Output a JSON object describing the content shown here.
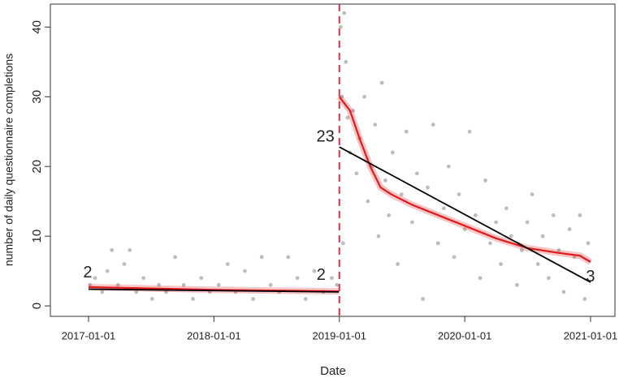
{
  "chart_data": {
    "type": "scatter",
    "x_label": "Date",
    "y_label": "number of daily questionnaire completions",
    "xlim": [
      "2016-09-12",
      "2021-03-13"
    ],
    "ylim": [
      -1.5,
      43.3
    ],
    "xticks": [
      "2017-01-01",
      "2018-01-01",
      "2019-01-01",
      "2020-01-01",
      "2021-01-01"
    ],
    "yticks": [
      0,
      10,
      20,
      30,
      40
    ],
    "vline": {
      "x": "2019-01-01",
      "color": "#d6334d"
    },
    "points": {
      "color": "#bdbdbd",
      "x": [
        "2017-01-05",
        "2017-01-20",
        "2017-02-10",
        "2017-02-25",
        "2017-03-10",
        "2017-03-28",
        "2017-04-15",
        "2017-05-01",
        "2017-05-20",
        "2017-06-10",
        "2017-07-05",
        "2017-07-25",
        "2017-08-15",
        "2017-09-10",
        "2017-10-05",
        "2017-11-01",
        "2017-11-25",
        "2017-12-20",
        "2018-01-15",
        "2018-02-10",
        "2018-03-05",
        "2018-04-01",
        "2018-04-25",
        "2018-05-20",
        "2018-06-15",
        "2018-07-10",
        "2018-08-05",
        "2018-09-01",
        "2018-09-25",
        "2018-10-20",
        "2018-11-15",
        "2018-12-10",
        "2018-12-25",
        "2019-01-05",
        "2019-01-08",
        "2019-01-12",
        "2019-01-15",
        "2019-01-20",
        "2019-01-25",
        "2019-02-01",
        "2019-02-10",
        "2019-02-20",
        "2019-03-01",
        "2019-03-15",
        "2019-03-25",
        "2019-04-05",
        "2019-04-15",
        "2019-04-25",
        "2019-05-05",
        "2019-05-15",
        "2019-05-25",
        "2019-06-05",
        "2019-06-20",
        "2019-07-01",
        "2019-07-15",
        "2019-08-01",
        "2019-08-15",
        "2019-09-01",
        "2019-09-15",
        "2019-10-01",
        "2019-10-15",
        "2019-11-01",
        "2019-11-15",
        "2019-12-01",
        "2019-12-15",
        "2020-01-01",
        "2020-01-15",
        "2020-02-01",
        "2020-02-15",
        "2020-03-01",
        "2020-03-15",
        "2020-04-01",
        "2020-04-15",
        "2020-05-01",
        "2020-05-15",
        "2020-06-01",
        "2020-06-15",
        "2020-07-01",
        "2020-07-15",
        "2020-08-01",
        "2020-08-15",
        "2020-09-01",
        "2020-09-15",
        "2020-10-01",
        "2020-10-15",
        "2020-11-01",
        "2020-11-15",
        "2020-12-01",
        "2020-12-15",
        "2020-12-25"
      ],
      "values": [
        3,
        4,
        2,
        5,
        8,
        3,
        6,
        8,
        2,
        4,
        1,
        3,
        2,
        7,
        3,
        1,
        4,
        2,
        3,
        6,
        2,
        5,
        1,
        7,
        3,
        2,
        7,
        4,
        1,
        5,
        2,
        4,
        3,
        40,
        30,
        9,
        42,
        35,
        27,
        22,
        28,
        19,
        24,
        30,
        15,
        20,
        26,
        10,
        32,
        18,
        13,
        22,
        6,
        16,
        25,
        12,
        19,
        1,
        17,
        26,
        9,
        14,
        20,
        7,
        16,
        11,
        25,
        13,
        4,
        18,
        9,
        12,
        6,
        14,
        10,
        3,
        8,
        12,
        16,
        6,
        10,
        4,
        13,
        8,
        2,
        11,
        7,
        13,
        1,
        9
      ]
    },
    "lines": [
      {
        "color": "#e31a1c",
        "x": [
          "2017-01-01",
          "2017-07-01",
          "2018-01-01",
          "2018-07-01",
          "2018-12-31"
        ],
        "values": [
          2.7,
          2.5,
          2.3,
          2.2,
          2.1
        ]
      },
      {
        "color": "#e31a1c",
        "x": [
          "2019-01-01",
          "2019-02-01",
          "2019-03-01",
          "2019-04-01",
          "2019-05-01",
          "2019-06-01",
          "2019-08-01",
          "2019-10-01",
          "2020-01-01",
          "2020-04-01",
          "2020-07-01",
          "2020-10-01",
          "2020-12-01",
          "2021-01-01"
        ],
        "values": [
          30,
          28,
          24,
          20,
          17,
          16,
          14.5,
          13.3,
          11.5,
          9.7,
          8.3,
          7.6,
          7.2,
          6.3
        ]
      },
      {
        "color": "#000000",
        "x": [
          "2017-01-01",
          "2018-12-31"
        ],
        "values": [
          2.4,
          2.0
        ],
        "value_labels": [
          "2",
          "2"
        ]
      },
      {
        "color": "#000000",
        "x": [
          "2019-01-01",
          "2021-01-01"
        ],
        "values": [
          22.8,
          3.4
        ],
        "value_labels": [
          "23",
          "3"
        ]
      }
    ]
  }
}
